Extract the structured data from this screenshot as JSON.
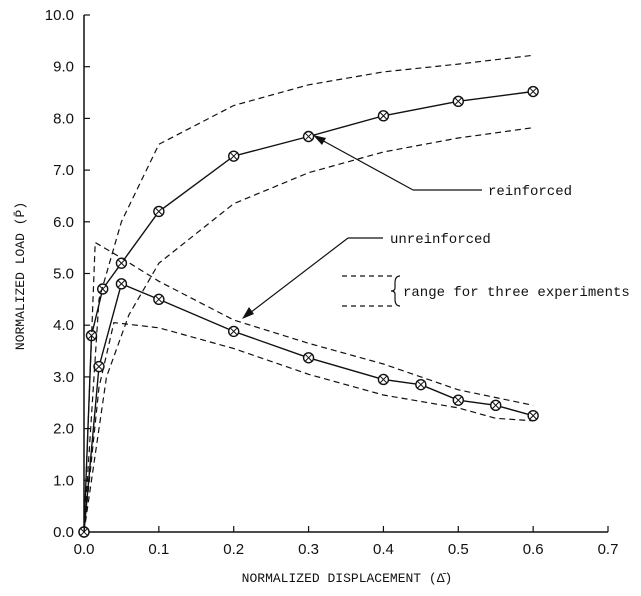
{
  "chart_data": {
    "type": "line",
    "xlabel": "NORMALIZED DISPLACEMENT (Δ̄)",
    "ylabel": "NORMALIZED LOAD (P̄)",
    "xlim": [
      0.0,
      0.7
    ],
    "ylim": [
      0.0,
      10.0
    ],
    "xticks": [
      "0.0",
      "0.1",
      "0.2",
      "0.3",
      "0.4",
      "0.5",
      "0.6",
      "0.7"
    ],
    "yticks": [
      "0.0",
      "1.0",
      "2.0",
      "3.0",
      "4.0",
      "5.0",
      "6.0",
      "7.0",
      "8.0",
      "9.0",
      "10.0"
    ],
    "grid": false,
    "series": [
      {
        "name": "reinforced",
        "style": "solid-marker",
        "x": [
          0.0,
          0.01,
          0.025,
          0.05,
          0.1,
          0.2,
          0.3,
          0.4,
          0.5,
          0.6
        ],
        "y": [
          0.0,
          3.8,
          4.7,
          5.2,
          6.2,
          7.27,
          7.65,
          8.05,
          8.33,
          8.52
        ]
      },
      {
        "name": "unreinforced",
        "style": "solid-marker",
        "x": [
          0.0,
          0.02,
          0.05,
          0.1,
          0.2,
          0.3,
          0.4,
          0.45,
          0.5,
          0.55,
          0.6
        ],
        "y": [
          0.0,
          3.2,
          4.8,
          4.5,
          3.88,
          3.37,
          2.95,
          2.85,
          2.55,
          2.45,
          2.25
        ]
      },
      {
        "style": "dashed",
        "x": [
          0.0,
          0.02,
          0.05,
          0.1,
          0.2,
          0.3,
          0.4,
          0.5,
          0.6
        ],
        "y": [
          0.0,
          4.5,
          6.0,
          7.5,
          8.25,
          8.65,
          8.9,
          9.05,
          9.22
        ]
      },
      {
        "style": "dashed",
        "x": [
          0.0,
          0.03,
          0.06,
          0.1,
          0.2,
          0.3,
          0.4,
          0.5,
          0.6
        ],
        "y": [
          0.0,
          3.0,
          4.2,
          5.2,
          6.35,
          6.95,
          7.35,
          7.62,
          7.82
        ]
      },
      {
        "style": "dashed",
        "x": [
          0.0,
          0.015,
          0.05,
          0.1,
          0.2,
          0.3,
          0.4,
          0.45,
          0.5,
          0.6
        ],
        "y": [
          0.0,
          5.6,
          5.3,
          4.85,
          4.1,
          3.65,
          3.25,
          3.0,
          2.75,
          2.45
        ]
      },
      {
        "style": "dashed",
        "x": [
          0.0,
          0.02,
          0.04,
          0.1,
          0.2,
          0.3,
          0.4,
          0.5,
          0.55,
          0.6
        ],
        "y": [
          0.0,
          2.8,
          4.05,
          3.95,
          3.55,
          3.05,
          2.65,
          2.4,
          2.2,
          2.15
        ]
      }
    ],
    "annotations": {
      "reinforced_label": "reinforced",
      "unreinforced_label": "unreinforced",
      "range_label": "range for three experiments"
    }
  }
}
